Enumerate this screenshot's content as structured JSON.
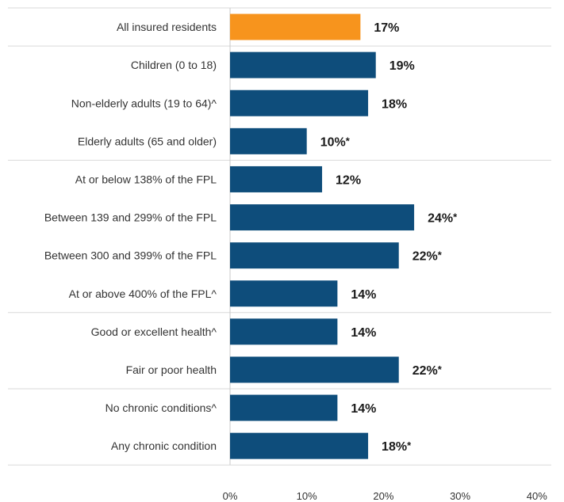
{
  "chart_data": {
    "type": "bar",
    "orientation": "horizontal",
    "categories": [
      "All insured residents",
      "Children (0 to 18)",
      "Non-elderly adults (19 to 64)^",
      "Elderly adults (65 and older)",
      "At or below 138% of the FPL",
      "Between 139 and 299% of the FPL",
      "Between 300 and 399% of the FPL",
      "At or above 400% of the FPL^",
      "Good or excellent health^",
      "Fair or poor health",
      "No chronic conditions^",
      "Any chronic condition"
    ],
    "values": [
      17,
      19,
      18,
      10,
      12,
      24,
      22,
      14,
      14,
      22,
      14,
      18
    ],
    "value_labels": [
      "17%",
      "19%",
      "18%",
      "10%",
      "12%",
      "24%",
      "22%",
      "14%",
      "14%",
      "22%",
      "14%",
      "18%"
    ],
    "value_marks": [
      "",
      "",
      "",
      "*",
      "",
      "*",
      "*",
      "",
      "",
      "*",
      "",
      "*"
    ],
    "highlight": [
      true,
      false,
      false,
      false,
      false,
      false,
      false,
      false,
      false,
      false,
      false,
      false
    ],
    "groups": [
      [
        0
      ],
      [
        1,
        2,
        3
      ],
      [
        4,
        5,
        6,
        7
      ],
      [
        8,
        9
      ],
      [
        10,
        11
      ]
    ],
    "xlim": [
      0,
      40
    ],
    "xticks": [
      0,
      10,
      20,
      30,
      40
    ],
    "xtick_labels": [
      "0%",
      "10%",
      "20%",
      "30%",
      "40%"
    ],
    "title": "",
    "xlabel": "",
    "ylabel": "",
    "grid": false,
    "colors": {
      "highlight": "#f7941d",
      "bar": "#0e4d7b",
      "divider": "#d9d9d9",
      "axis": "#c8c8c8"
    }
  }
}
